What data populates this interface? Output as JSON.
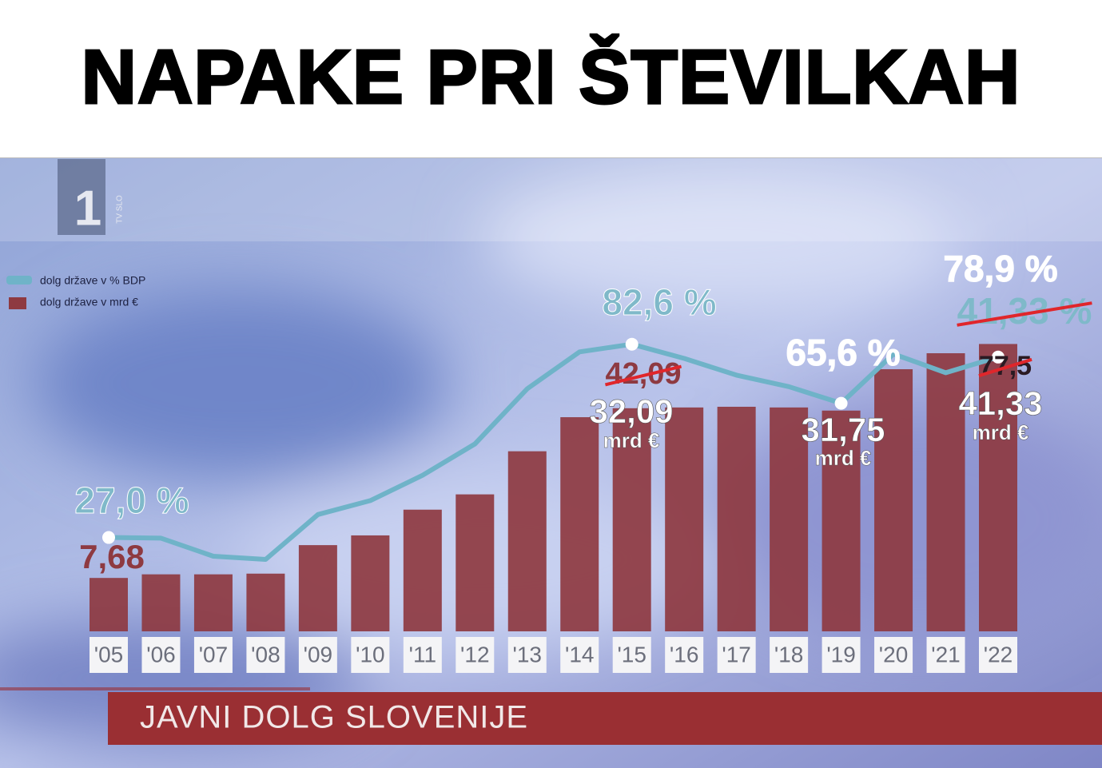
{
  "chart_data": {
    "type": "bar-line",
    "title": "NAPAKE PRI ŠTEVILKAH",
    "subtitle": "JAVNI DOLG SLOVENIJE",
    "channel": {
      "logo": "1",
      "name": "TV SLO"
    },
    "categories": [
      "'05",
      "'06",
      "'07",
      "'08",
      "'09",
      "'10",
      "'11",
      "'12",
      "'13",
      "'14",
      "'15",
      "'16",
      "'17",
      "'18",
      "'19",
      "'20",
      "'21",
      "'22"
    ],
    "series": [
      {
        "name": "dolg države v mrd  €",
        "color": "#8e3a41",
        "values": [
          7.68,
          8.2,
          8.2,
          8.3,
          12.4,
          13.8,
          17.5,
          19.7,
          25.9,
          30.8,
          32.09,
          32.2,
          32.3,
          32.2,
          31.75,
          37.7,
          40.0,
          41.33
        ],
        "value_labels": [
          "7,68",
          null,
          null,
          null,
          null,
          null,
          null,
          null,
          null,
          null,
          "32,09",
          null,
          null,
          null,
          "31,75",
          null,
          null,
          "41,33"
        ]
      },
      {
        "name": "dolg države v % BDP",
        "color": "#6fb3c8",
        "axis": "y2",
        "values": [
          27.0,
          26.8,
          21.6,
          20.7,
          33.6,
          37.6,
          44.9,
          53.9,
          69.8,
          80.4,
          82.6,
          78.5,
          73.7,
          70.4,
          65.6,
          79.8,
          74.4,
          78.9
        ],
        "value_labels": [
          "27,0 %",
          null,
          null,
          null,
          null,
          null,
          null,
          null,
          null,
          null,
          "82,6 %",
          null,
          null,
          null,
          "65,6 %",
          null,
          null,
          "78,9 %"
        ]
      }
    ],
    "ylim": [
      0,
      50
    ],
    "y2lim": [
      0,
      100
    ],
    "annotations": {
      "unit": "mrd €",
      "struck": [
        "42,09",
        "41,33 %",
        "77,5"
      ]
    }
  }
}
